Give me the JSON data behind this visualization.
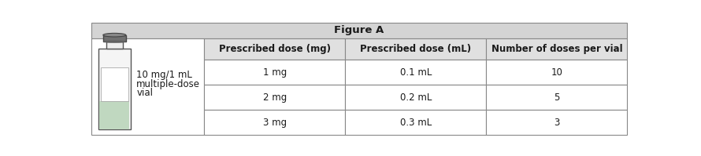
{
  "title": "Figure A",
  "title_bg": "#d4d4d4",
  "header_bg": "#e0e0e0",
  "cell_bg": "#ffffff",
  "img_col_bg": "#ffffff",
  "col_headers": [
    "Prescribed dose (mg)",
    "Prescribed dose (mL)",
    "Number of doses per vial"
  ],
  "rows": [
    [
      "1 mg",
      "0.1 mL",
      "10"
    ],
    [
      "2 mg",
      "0.2 mL",
      "5"
    ],
    [
      "3 mg",
      "0.3 mL",
      "3"
    ]
  ],
  "vial_label_line1": "10 mg/1 mL",
  "vial_label_line2": "multiple-dose",
  "vial_label_line3": "vial",
  "bg_color": "#ffffff",
  "border_color": "#888888",
  "text_color": "#1a1a1a",
  "title_fontsize": 9.5,
  "header_fontsize": 8.5,
  "cell_fontsize": 8.5,
  "label_fontsize": 8.5
}
